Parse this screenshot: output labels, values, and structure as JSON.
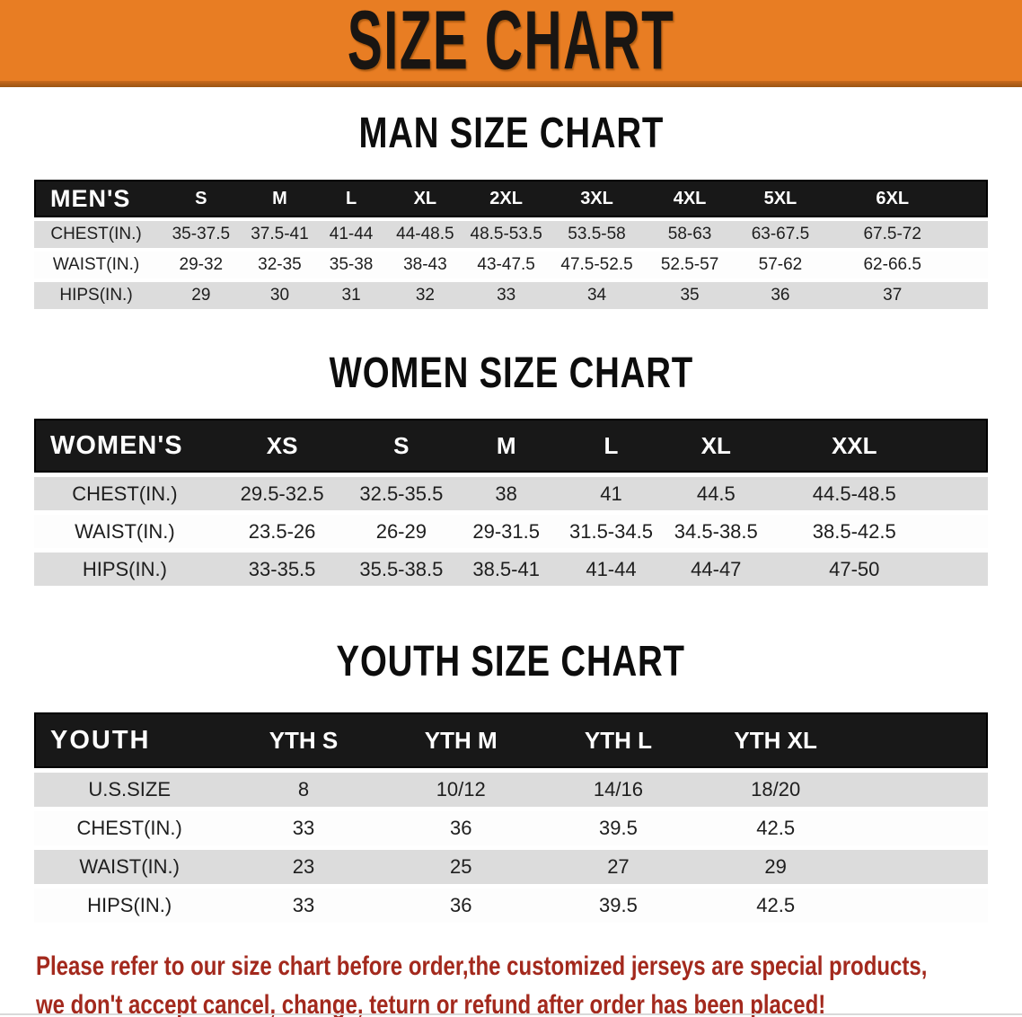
{
  "banner": {
    "title": "SIZE CHART"
  },
  "colors": {
    "banner_orange": "#E87D23",
    "table_header_black": "#181818",
    "row_stripe_gray": "#DCDCDC",
    "disclaimer_red": "#A3291D"
  },
  "sections": {
    "men": {
      "heading": "MAN SIZE CHART",
      "table": {
        "header": [
          "MEN'S",
          "S",
          "M",
          "L",
          "XL",
          "2XL",
          "3XL",
          "4XL",
          "5XL",
          "6XL"
        ],
        "rows": [
          [
            "CHEST(IN.)",
            "35-37.5",
            "37.5-41",
            "41-44",
            "44-48.5",
            "48.5-53.5",
            "53.5-58",
            "58-63",
            "63-67.5",
            "67.5-72"
          ],
          [
            "WAIST(IN.)",
            "29-32",
            "32-35",
            "35-38",
            "38-43",
            "43-47.5",
            "47.5-52.5",
            "52.5-57",
            "57-62",
            "62-66.5"
          ],
          [
            "HIPS(IN.)",
            "29",
            "30",
            "31",
            "32",
            "33",
            "34",
            "35",
            "36",
            "37"
          ]
        ]
      }
    },
    "women": {
      "heading": "WOMEN SIZE CHART",
      "table": {
        "header": [
          "WOMEN'S",
          "XS",
          "S",
          "M",
          "L",
          "XL",
          "XXL"
        ],
        "rows": [
          [
            "CHEST(IN.)",
            "29.5-32.5",
            "32.5-35.5",
            "38",
            "41",
            "44.5",
            "44.5-48.5"
          ],
          [
            "WAIST(IN.)",
            "23.5-26",
            "26-29",
            "29-31.5",
            "31.5-34.5",
            "34.5-38.5",
            "38.5-42.5"
          ],
          [
            "HIPS(IN.)",
            "33-35.5",
            "35.5-38.5",
            "38.5-41",
            "41-44",
            "44-47",
            "47-50"
          ]
        ]
      }
    },
    "youth": {
      "heading": "YOUTH SIZE CHART",
      "table": {
        "header": [
          "YOUTH",
          "YTH S",
          "YTH M",
          "YTH L",
          "YTH XL"
        ],
        "rows": [
          [
            "U.S.SIZE",
            "8",
            "10/12",
            "14/16",
            "18/20"
          ],
          [
            "CHEST(IN.)",
            "33",
            "36",
            "39.5",
            "42.5"
          ],
          [
            "WAIST(IN.)",
            "23",
            "25",
            "27",
            "29"
          ],
          [
            "HIPS(IN.)",
            "33",
            "36",
            "39.5",
            "42.5"
          ]
        ]
      }
    }
  },
  "footer": {
    "line1": "Please refer to our size chart before order,the customized jerseys are special products,",
    "line2": "we don't accept cancel, change, teturn or refund after order has been placed!"
  }
}
